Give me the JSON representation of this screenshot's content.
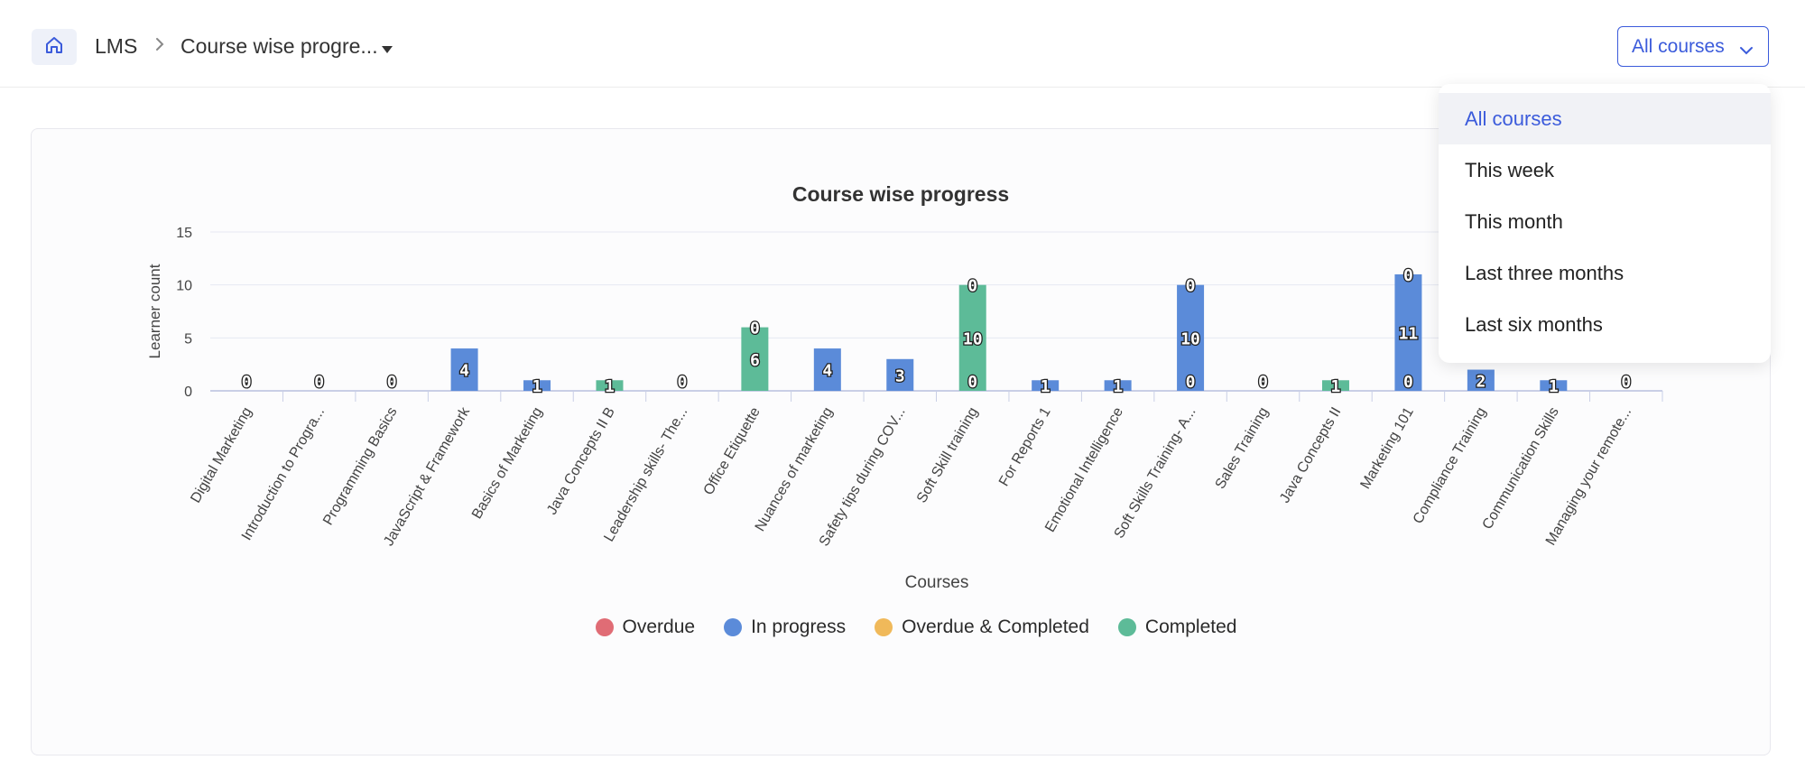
{
  "header": {
    "home_icon": "home-icon",
    "crumb_root": "LMS",
    "crumb_current": "Course wise progre...",
    "filter_value": "All courses"
  },
  "filter_menu": {
    "options": [
      "All courses",
      "This week",
      "This month",
      "Last three months",
      "Last six months"
    ],
    "selected": "All courses"
  },
  "colors": {
    "overdue": "#e06c75",
    "in_progress": "#5b8bd9",
    "overdue_completed": "#f0b95a",
    "completed": "#5dbb98",
    "accent": "#3b5bdb"
  },
  "chart_data": {
    "type": "bar",
    "title": "Course wise progress",
    "xlabel": "Courses",
    "ylabel": "Learner count",
    "ylim": [
      0,
      15
    ],
    "yticks": [
      0,
      5,
      10,
      15
    ],
    "categories": [
      "Digital Marketing",
      "Introduction to Progra...",
      "Programming Basics",
      "JavaScript & Framework",
      "Basics of Marketing",
      "Java Concepts II B",
      "Leadership skills- The...",
      "Office Etiquette",
      "Nuances of marketing",
      "Safety tips during COV...",
      "Soft Skill training",
      "For Reports 1",
      "Emotional Intelligence",
      "Soft Skills Training- A...",
      "Sales Training",
      "Java Concepts II",
      "Marketing 101",
      "Compliance Training",
      "Communication Skills",
      "Managing your remote..."
    ],
    "series": [
      {
        "name": "Overdue",
        "values": [
          0,
          0,
          0,
          0,
          0,
          0,
          0,
          0,
          0,
          0,
          0,
          0,
          0,
          0,
          0,
          0,
          0,
          0,
          0,
          0
        ]
      },
      {
        "name": "In progress",
        "values": [
          0,
          0,
          0,
          4,
          1,
          0,
          0,
          0,
          4,
          3,
          0,
          1,
          1,
          10,
          0,
          0,
          11,
          2,
          1,
          0
        ]
      },
      {
        "name": "Overdue & Completed",
        "values": [
          0,
          0,
          0,
          0,
          0,
          0,
          0,
          0,
          0,
          0,
          0,
          0,
          0,
          0,
          0,
          0,
          0,
          0,
          0,
          0
        ]
      },
      {
        "name": "Completed",
        "values": [
          0,
          0,
          0,
          0,
          0,
          1,
          0,
          6,
          0,
          0,
          10,
          0,
          0,
          0,
          0,
          1,
          0,
          0,
          0,
          0
        ]
      }
    ],
    "legend": [
      "Overdue",
      "In progress",
      "Overdue & Completed",
      "Completed"
    ],
    "legend_position": "bottom",
    "grid": true
  }
}
